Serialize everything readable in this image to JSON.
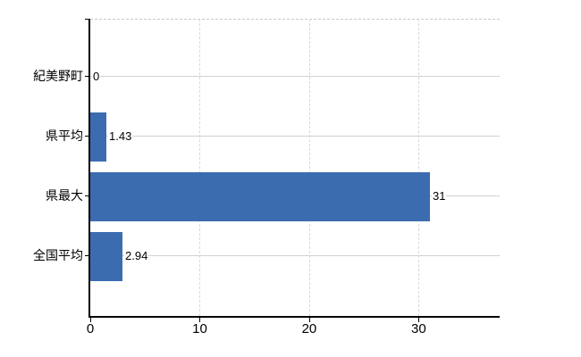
{
  "chart_data": {
    "type": "bar",
    "orientation": "horizontal",
    "title": "",
    "xlabel": "",
    "ylabel": "",
    "categories": [
      "紀美野町",
      "県平均",
      "県最大",
      "全国平均"
    ],
    "values": [
      0,
      1.43,
      31,
      2.94
    ],
    "value_labels": [
      "0",
      "1.43",
      "31",
      "2.94"
    ],
    "x_ticks": [
      0,
      10,
      20,
      30
    ],
    "x_tick_labels": [
      "0",
      "10",
      "20",
      "30"
    ],
    "xlim": [
      0,
      37.4
    ],
    "grid": true,
    "legend": "none",
    "colors": {
      "bar": "#3c6cb0",
      "axis": "#000000",
      "h_gridline": "#ccd4cc",
      "v_gridline": "#d9d9d9",
      "top_border_dashed": "#c9c9c9",
      "background": "#ffffff",
      "text": "#000000"
    }
  }
}
